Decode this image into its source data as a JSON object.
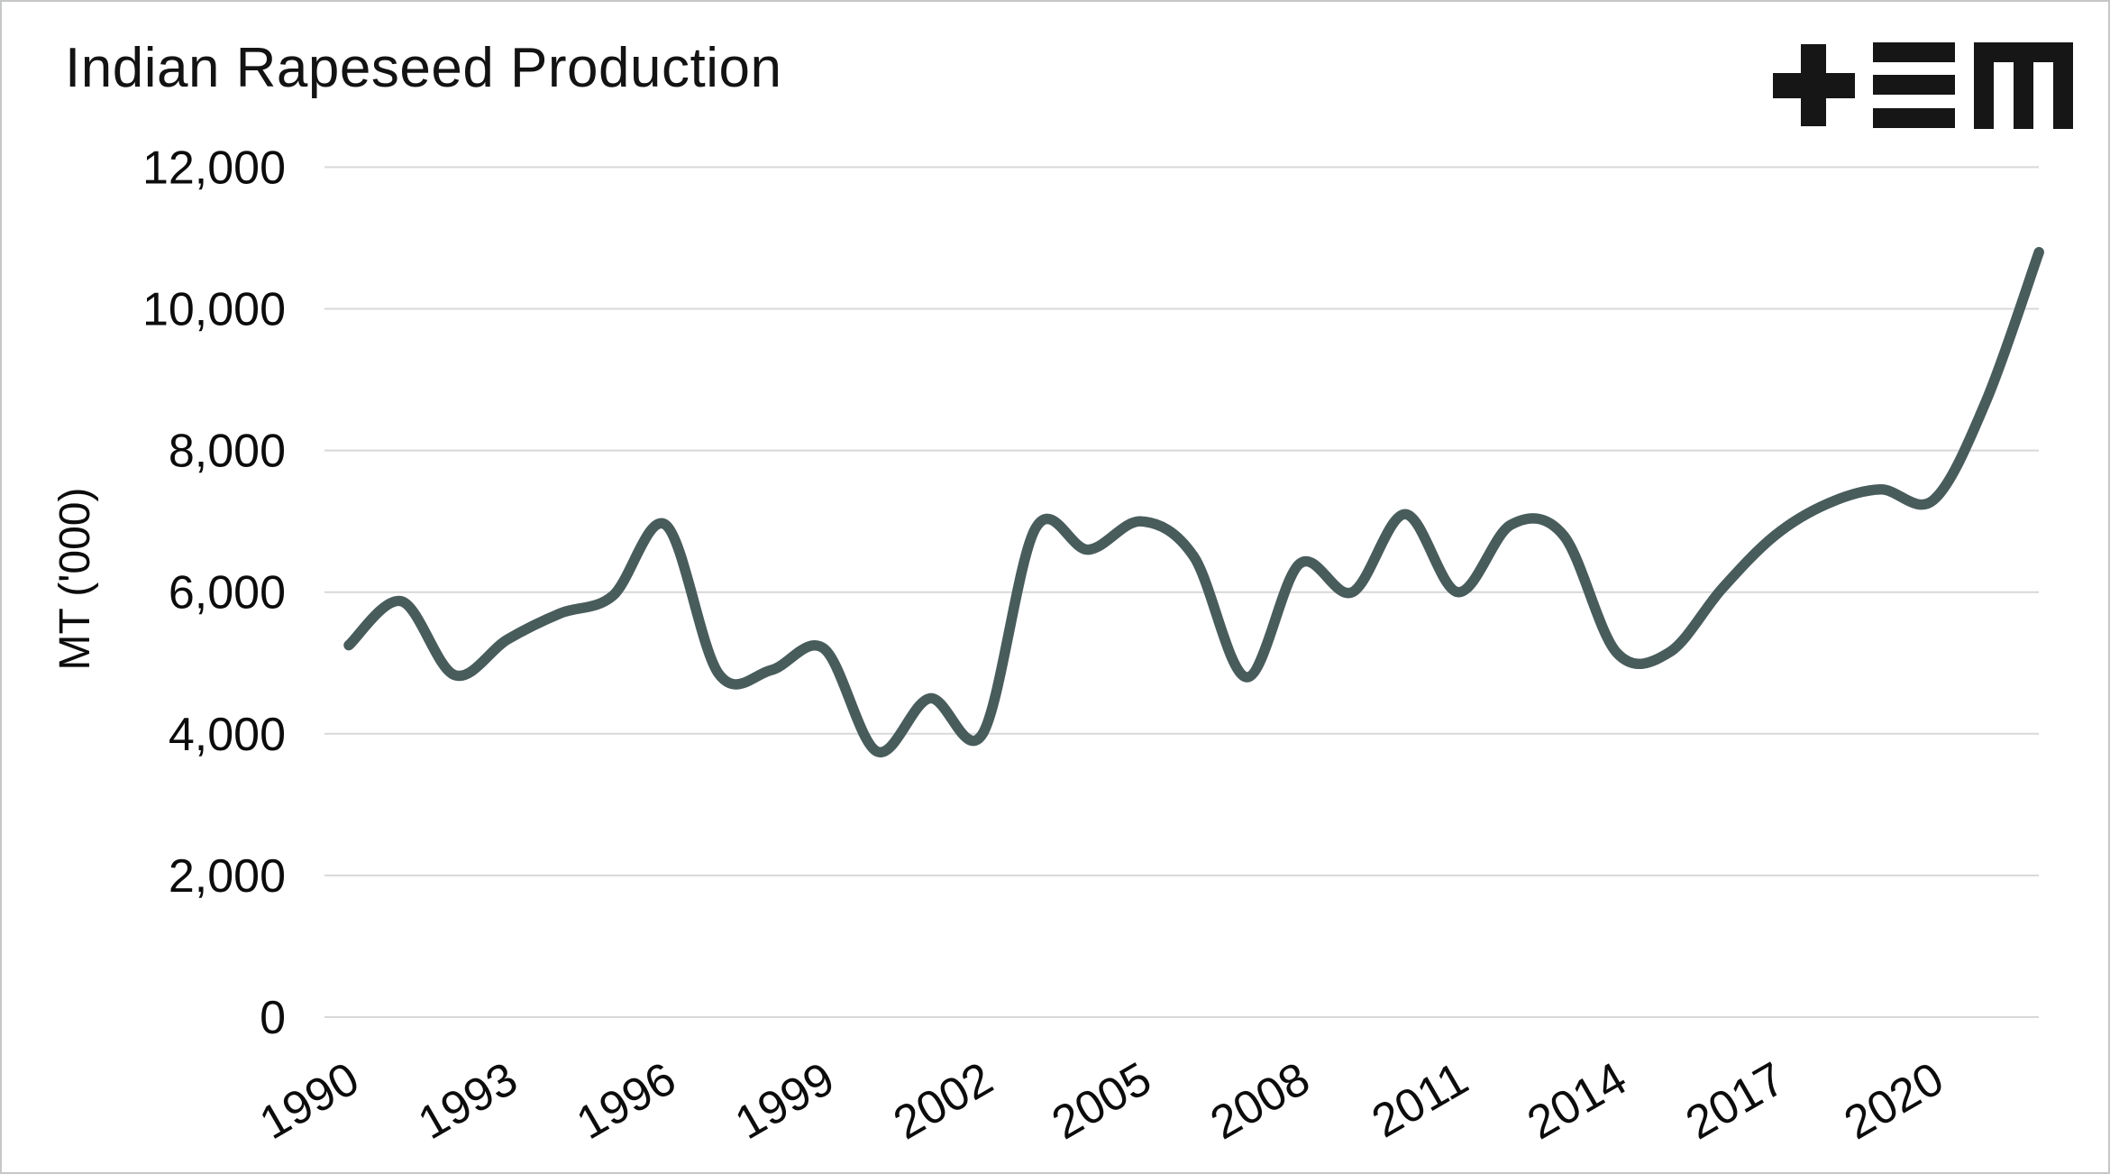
{
  "header": {
    "title": "Indian Rapeseed Production",
    "logo_icon": "tem-logo"
  },
  "chart_data": {
    "type": "line",
    "title": "Indian Rapeseed Production",
    "xlabel": "",
    "ylabel": "MT ('000)",
    "x": [
      1990,
      1991,
      1992,
      1993,
      1994,
      1995,
      1996,
      1997,
      1998,
      1999,
      2000,
      2001,
      2002,
      2003,
      2004,
      2005,
      2006,
      2007,
      2008,
      2009,
      2010,
      2011,
      2012,
      2013,
      2014,
      2015,
      2016,
      2017,
      2018,
      2019,
      2020,
      2021,
      2022
    ],
    "series": [
      {
        "name": "Indian rapeseed production",
        "values": [
          5250,
          5870,
          4830,
          5330,
          5700,
          5950,
          6950,
          4850,
          4900,
          5200,
          3750,
          4500,
          4000,
          6900,
          6600,
          7000,
          6500,
          4800,
          6400,
          6000,
          7100,
          6000,
          6950,
          6800,
          5150,
          5150,
          6050,
          6800,
          7250,
          7450,
          7300,
          8700,
          10800
        ]
      }
    ],
    "ylim": [
      0,
      12000
    ],
    "xlim": [
      1990,
      2022
    ],
    "yticks": [
      0,
      2000,
      4000,
      6000,
      8000,
      10000,
      12000
    ],
    "ytick_labels": [
      "0",
      "2,000",
      "4,000",
      "6,000",
      "8,000",
      "10,000",
      "12,000"
    ],
    "xticks": [
      1990,
      1993,
      1996,
      1999,
      2002,
      2005,
      2008,
      2011,
      2014,
      2017,
      2020
    ],
    "grid": "horizontal",
    "legend": "none",
    "smoothing": "catmull-rom",
    "line_color": "#495c5c",
    "grid_color": "#d8d8d8",
    "text_color": "#0c0c0c",
    "background": "#ffffff"
  }
}
